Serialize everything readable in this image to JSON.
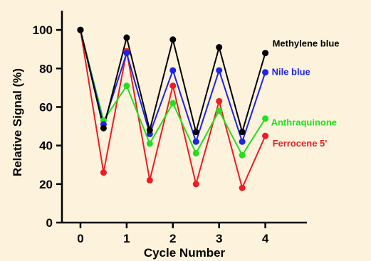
{
  "chart_data": {
    "type": "line",
    "xlabel": "Cycle Number",
    "ylabel": "Relative Signal (%)",
    "xlim": [
      -0.4,
      4.9
    ],
    "ylim": [
      0,
      110
    ],
    "xticks": [
      0,
      1,
      2,
      3,
      4
    ],
    "xtick_labels": [
      "0",
      "1",
      "2",
      "3",
      "4"
    ],
    "yticks": [
      0,
      20,
      40,
      60,
      80,
      100
    ],
    "ytick_labels": [
      "0",
      "20",
      "40",
      "60",
      "80",
      "100"
    ],
    "grid": false,
    "legend": "inline labels at right end of each series",
    "x": [
      0,
      0.5,
      1,
      1.5,
      2,
      2.5,
      3,
      3.5,
      4
    ],
    "series": [
      {
        "name": "Ferrocene 5'",
        "color": "#ee1c24",
        "values": [
          100,
          26,
          89,
          22,
          71,
          20,
          63,
          18,
          45
        ]
      },
      {
        "name": "Anthraquinone",
        "color": "#21e01f",
        "values": [
          100,
          53,
          71,
          41,
          62,
          36,
          58,
          35,
          54
        ]
      },
      {
        "name": "Nile blue",
        "color": "#1c24e6",
        "values": [
          100,
          51,
          88,
          46,
          79,
          42,
          79,
          42,
          78
        ]
      },
      {
        "name": "Methylene blue",
        "color": "#000000",
        "values": [
          100,
          49,
          96,
          48,
          95,
          47,
          91,
          47,
          88
        ]
      }
    ]
  }
}
